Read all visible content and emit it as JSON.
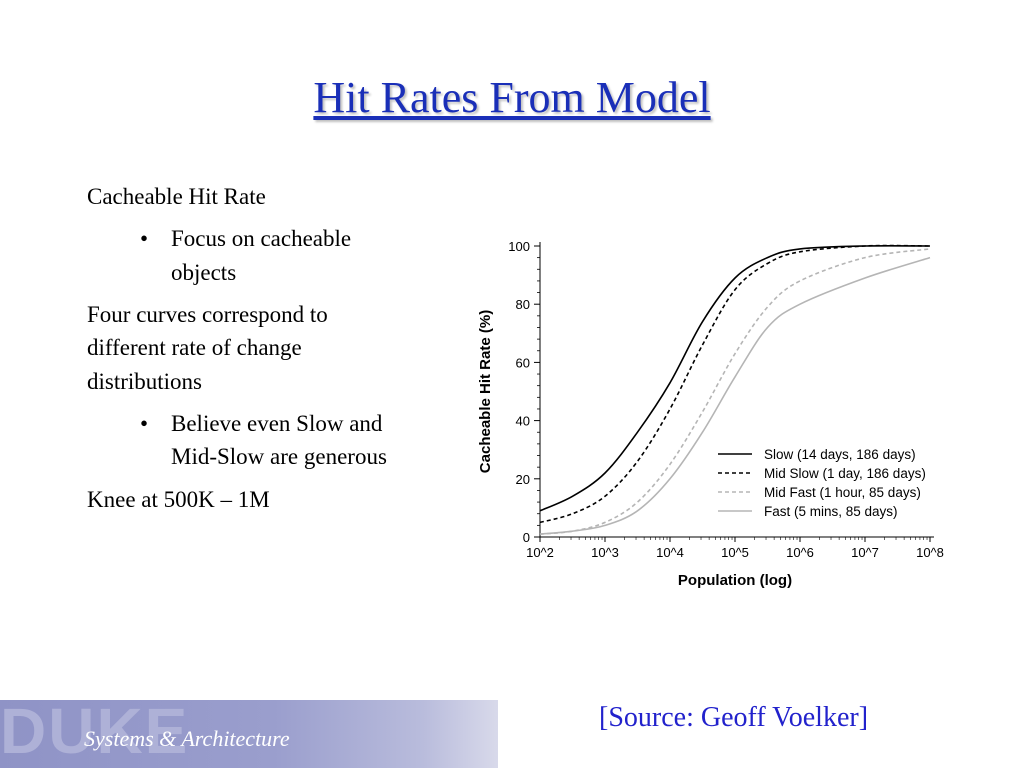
{
  "slide": {
    "title": "Hit Rates From Model",
    "body": {
      "item1": "Cacheable Hit Rate",
      "sub1": "Focus on cacheable objects",
      "item2": "Four curves correspond to different rate of change distributions",
      "sub2": "Believe even Slow and Mid-Slow are generous",
      "item3": "Knee at 500K – 1M",
      "bullet": "•"
    },
    "footer": {
      "watermark": "DUKE",
      "label": "Systems & Architecture",
      "source": "[Source: Geoff Voelker]"
    }
  },
  "chart_data": {
    "type": "line",
    "xlabel": "Population (log)",
    "ylabel": "Cacheable Hit Rate (%)",
    "x_scale": "log",
    "xlim": [
      100,
      100000000
    ],
    "ylim": [
      0,
      100
    ],
    "x_ticks": [
      "10^2",
      "10^3",
      "10^4",
      "10^5",
      "10^6",
      "10^7",
      "10^8"
    ],
    "y_ticks": [
      "0",
      "20",
      "40",
      "60",
      "80",
      "100"
    ],
    "legend_position": "bottom-right",
    "grid": false,
    "series": [
      {
        "name": "Slow (14 days, 186 days)",
        "color": "#000000",
        "style": "solid",
        "x": [
          100,
          316,
          1000,
          3162,
          10000,
          31623,
          100000,
          316228,
          1000000,
          10000000,
          100000000
        ],
        "y": [
          9,
          14,
          22,
          36,
          53,
          74,
          89,
          96,
          99,
          100,
          100
        ]
      },
      {
        "name": "Mid Slow (1 day, 186 days)",
        "color": "#000000",
        "style": "dashed",
        "x": [
          100,
          316,
          1000,
          3162,
          10000,
          31623,
          100000,
          316228,
          1000000,
          10000000,
          100000000
        ],
        "y": [
          5,
          8,
          14,
          26,
          44,
          66,
          85,
          94,
          98,
          100,
          100
        ]
      },
      {
        "name": "Mid Fast (1 hour, 85 days)",
        "color": "#b5b5b5",
        "style": "dashed",
        "x": [
          100,
          316,
          1000,
          3162,
          10000,
          31623,
          100000,
          316228,
          1000000,
          10000000,
          100000000
        ],
        "y": [
          1,
          2,
          5,
          12,
          25,
          43,
          63,
          79,
          88,
          96,
          99
        ]
      },
      {
        "name": "Fast (5 mins, 85 days)",
        "color": "#b5b5b5",
        "style": "solid",
        "x": [
          100,
          316,
          1000,
          3162,
          10000,
          31623,
          100000,
          316228,
          1000000,
          10000000,
          100000000
        ],
        "y": [
          1,
          2,
          4,
          9,
          20,
          36,
          55,
          72,
          80,
          89,
          96
        ]
      }
    ]
  }
}
